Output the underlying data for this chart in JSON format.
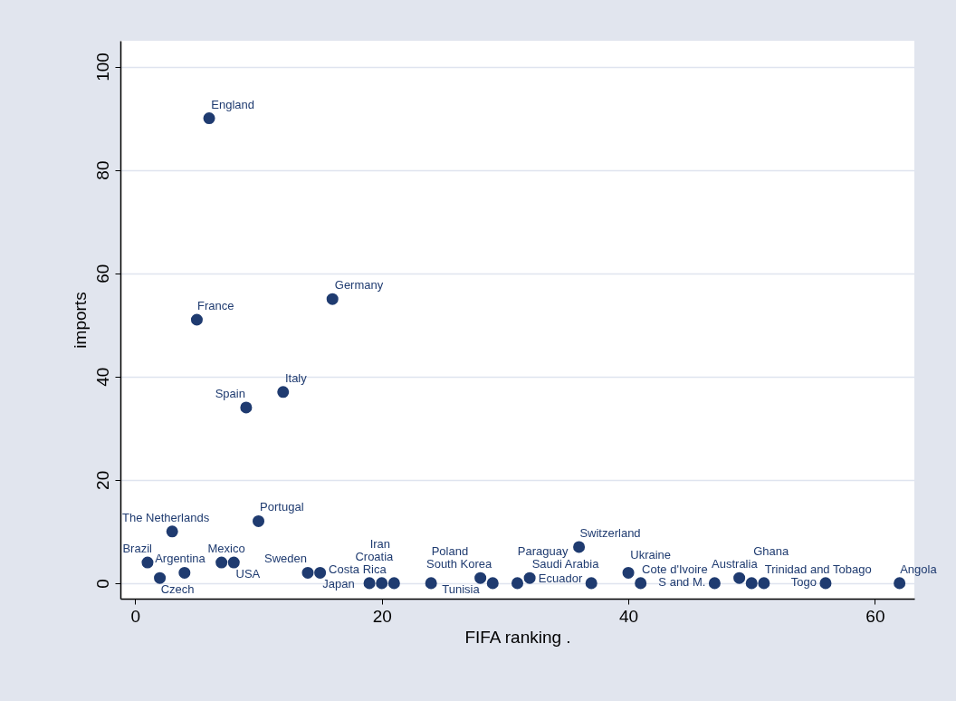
{
  "chart_data": {
    "type": "scatter",
    "xlabel": "FIFA ranking .",
    "ylabel": "imports",
    "series": [
      {
        "color": "#1f3b70",
        "x": [
          6,
          5,
          16,
          12,
          9,
          1,
          2,
          3,
          4,
          7,
          8,
          10,
          14,
          15,
          19,
          20,
          21,
          24,
          28,
          29,
          31,
          32,
          36,
          37,
          40,
          41,
          47,
          49,
          50,
          51,
          56,
          62
        ],
        "values": [
          90,
          51,
          55,
          37,
          34,
          4,
          1,
          10,
          2,
          4,
          4,
          12,
          2,
          2,
          0,
          0,
          0,
          0,
          1,
          0,
          0,
          1,
          7,
          0,
          2,
          0,
          0,
          1,
          0,
          0,
          0,
          0
        ]
      }
    ],
    "annotations": [
      {
        "text": "England",
        "x": 6,
        "y": 90
      },
      {
        "text": "France",
        "x": 5,
        "y": 51
      },
      {
        "text": "Germany",
        "x": 16,
        "y": 55
      },
      {
        "text": "Italy",
        "x": 12,
        "y": 37
      },
      {
        "text": "Spain",
        "x": 9,
        "y": 34
      },
      {
        "text": "Brazil",
        "x": 1,
        "y": 4
      },
      {
        "text": "Czech",
        "x": 2,
        "y": 1
      },
      {
        "text": "The Netherlands",
        "x": 3,
        "y": 10
      },
      {
        "text": "Argentina",
        "x": 4,
        "y": 2
      },
      {
        "text": "Mexico",
        "x": 7,
        "y": 4
      },
      {
        "text": "USA",
        "x": 8,
        "y": 4
      },
      {
        "text": "Portugal",
        "x": 10,
        "y": 12
      },
      {
        "text": "Sweden",
        "x": 14,
        "y": 2
      },
      {
        "text": "Japan",
        "x": 15,
        "y": 2
      },
      {
        "text": "Iran",
        "x": 19,
        "y": 0
      },
      {
        "text": "Costa Rica",
        "x": 20,
        "y": 0
      },
      {
        "text": "Croatia",
        "x": 21,
        "y": 0
      },
      {
        "text": "Poland",
        "x": 24,
        "y": 0
      },
      {
        "text": "Tunisia",
        "x": 28,
        "y": 1
      },
      {
        "text": "South Korea",
        "x": 29,
        "y": 0
      },
      {
        "text": "Paraguay",
        "x": 31,
        "y": 0
      },
      {
        "text": "Saudi Arabia",
        "x": 32,
        "y": 1
      },
      {
        "text": "Switzerland",
        "x": 36,
        "y": 7
      },
      {
        "text": "Ecuador",
        "x": 37,
        "y": 0
      },
      {
        "text": "Ukraine",
        "x": 40,
        "y": 2
      },
      {
        "text": "Cote d'Ivoire",
        "x": 41,
        "y": 0
      },
      {
        "text": "S and M.",
        "x": 47,
        "y": 0
      },
      {
        "text": "Australia",
        "x": 49,
        "y": 1
      },
      {
        "text": "Ghana",
        "x": 50,
        "y": 0
      },
      {
        "text": "Trinidad and Tobago",
        "x": 51,
        "y": 0
      },
      {
        "text": "Togo",
        "x": 56,
        "y": 0
      },
      {
        "text": "Angola",
        "x": 62,
        "y": 0
      }
    ],
    "xlim": [
      -1.2,
      63.2
    ],
    "ylim": [
      -3,
      105
    ],
    "xticks": [
      0,
      20,
      40,
      60
    ],
    "yticks": [
      0,
      20,
      40,
      60,
      80,
      100
    ],
    "grid": "y",
    "marker": "circle"
  }
}
